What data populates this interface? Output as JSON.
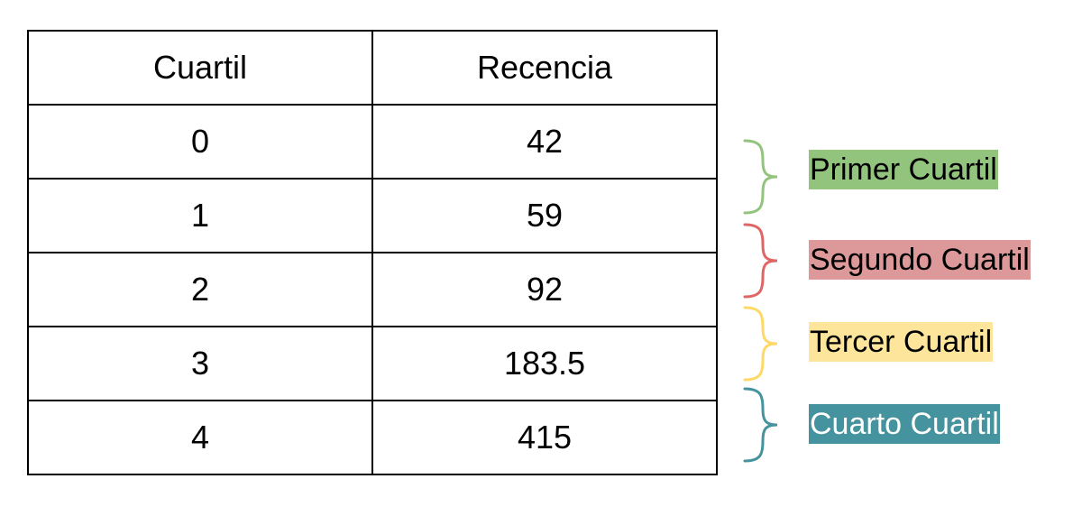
{
  "table": {
    "headers": [
      "Cuartil",
      "Recencia"
    ],
    "rows": [
      [
        "0",
        "42"
      ],
      [
        "1",
        "59"
      ],
      [
        "2",
        "92"
      ],
      [
        "3",
        "183.5"
      ],
      [
        "4",
        "415"
      ]
    ]
  },
  "annotations": [
    {
      "label": "Primer Cuartil",
      "color": "#93c47d",
      "text_color": "#000000"
    },
    {
      "label": "Segundo Cuartil",
      "color": "#e06666",
      "highlight": "#dd9999",
      "text_color": "#000000"
    },
    {
      "label": "Tercer Cuartil",
      "color": "#ffd966",
      "highlight": "#fde69c",
      "text_color": "#000000"
    },
    {
      "label": "Cuarto Cuartil",
      "color": "#45939e",
      "text_color": "#ffffff"
    }
  ]
}
